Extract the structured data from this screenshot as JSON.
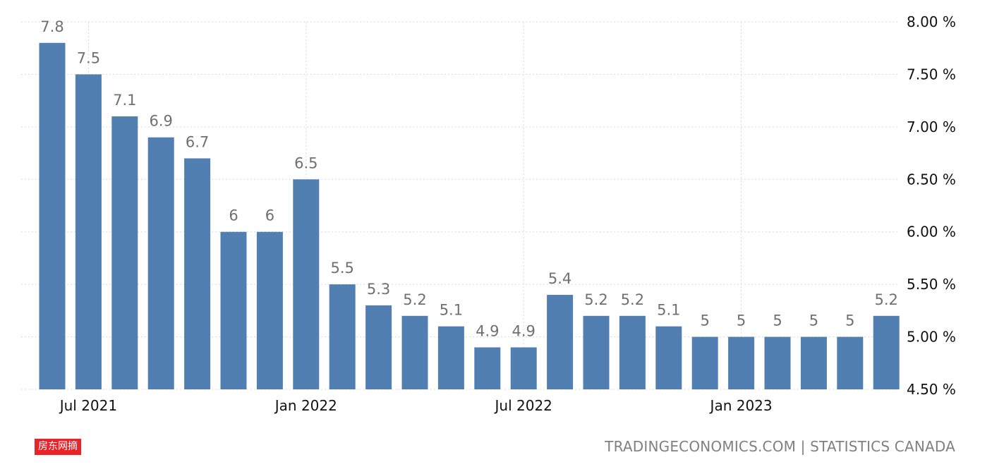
{
  "chart_data": {
    "type": "bar",
    "categories": [
      "2021-06",
      "2021-07",
      "2021-08",
      "2021-09",
      "2021-10",
      "2021-11",
      "2021-12",
      "2022-01",
      "2022-02",
      "2022-03",
      "2022-04",
      "2022-05",
      "2022-06",
      "2022-07",
      "2022-08",
      "2022-09",
      "2022-10",
      "2022-11",
      "2022-12",
      "2023-01",
      "2023-02",
      "2023-03",
      "2023-04",
      "2023-05"
    ],
    "values": [
      7.8,
      7.5,
      7.1,
      6.9,
      6.7,
      6,
      6,
      6.5,
      5.5,
      5.3,
      5.2,
      5.1,
      4.9,
      4.9,
      5.4,
      5.2,
      5.2,
      5.1,
      5,
      5,
      5,
      5,
      5,
      5.2
    ],
    "value_labels": [
      "7.8",
      "7.5",
      "7.1",
      "6.9",
      "6.7",
      "6",
      "6",
      "6.5",
      "5.5",
      "5.3",
      "5.2",
      "5.1",
      "4.9",
      "4.9",
      "5.4",
      "5.2",
      "5.2",
      "5.1",
      "5",
      "5",
      "5",
      "5",
      "5",
      "5.2"
    ],
    "ylim": [
      4.5,
      8.0
    ],
    "y_ticks": [
      {
        "value": 8.0,
        "label": "8.00 %"
      },
      {
        "value": 7.5,
        "label": "7.50 %"
      },
      {
        "value": 7.0,
        "label": "7.00 %"
      },
      {
        "value": 6.5,
        "label": "6.50 %"
      },
      {
        "value": 6.0,
        "label": "6.00 %"
      },
      {
        "value": 5.5,
        "label": "5.50 %"
      },
      {
        "value": 5.0,
        "label": "5.00 %"
      },
      {
        "value": 4.5,
        "label": "4.50 %"
      }
    ],
    "x_ticks": [
      {
        "category": "2021-07",
        "label": "Jul 2021"
      },
      {
        "category": "2022-01",
        "label": "Jan 2022"
      },
      {
        "category": "2022-07",
        "label": "Jul 2022"
      },
      {
        "category": "2023-01",
        "label": "Jan 2023"
      }
    ],
    "bar_color": "#527fb2",
    "grid": true,
    "axis_position": "right"
  },
  "watermark": "房东网摘",
  "source": "TRADINGECONOMICS.COM | STATISTICS CANADA"
}
